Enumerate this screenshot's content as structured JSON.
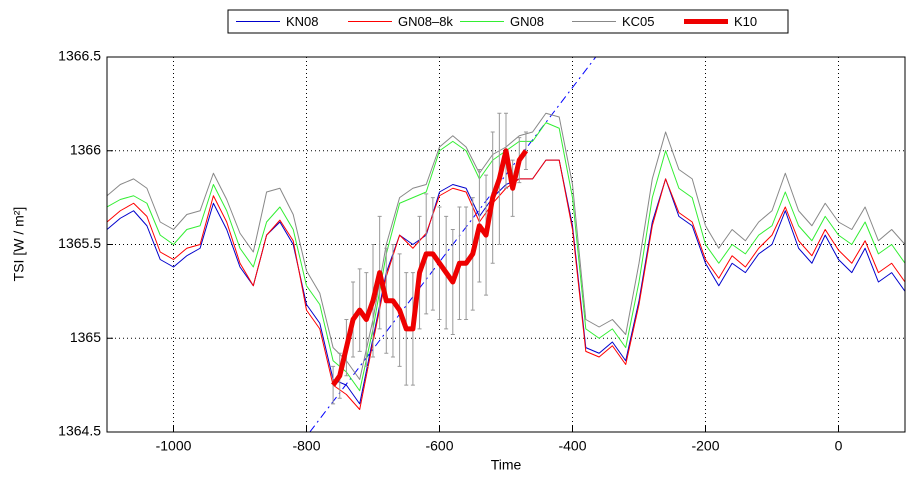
{
  "chart_data": {
    "type": "line",
    "xlabel": "Time",
    "ylabel": "TSI [W / m²]",
    "xlim": [
      -1100,
      100
    ],
    "ylim": [
      1364.5,
      1366.5
    ],
    "xticks": [
      -1000,
      -800,
      -600,
      -400,
      -200,
      0
    ],
    "yticks": [
      1364.5,
      1365,
      1365.5,
      1366,
      1366.5
    ],
    "grid": true,
    "legend": "top",
    "x": [
      -1100,
      -1080,
      -1060,
      -1040,
      -1020,
      -1000,
      -980,
      -960,
      -940,
      -920,
      -900,
      -880,
      -860,
      -840,
      -820,
      -800,
      -780,
      -760,
      -740,
      -720,
      -700,
      -680,
      -660,
      -640,
      -620,
      -600,
      -580,
      -560,
      -540,
      -520,
      -500,
      -480,
      -460,
      -440,
      -420,
      -400,
      -380,
      -360,
      -340,
      -320,
      -300,
      -280,
      -260,
      -240,
      -220,
      -200,
      -180,
      -160,
      -140,
      -120,
      -100,
      -80,
      -60,
      -40,
      -20,
      0,
      20,
      40,
      60,
      80,
      100
    ],
    "series": [
      {
        "name": "KN08",
        "color": "#0000cc",
        "width": 1,
        "values": [
          1365.58,
          1365.64,
          1365.68,
          1365.6,
          1365.42,
          1365.38,
          1365.44,
          1365.48,
          1365.72,
          1365.58,
          1365.38,
          1365.28,
          1365.55,
          1365.62,
          1365.5,
          1365.18,
          1365.08,
          1364.78,
          1364.75,
          1364.65,
          1365.0,
          1365.35,
          1365.55,
          1365.5,
          1365.55,
          1365.78,
          1365.82,
          1365.8,
          1365.65,
          1365.75,
          1365.82,
          1365.85,
          1365.85,
          1365.95,
          1365.95,
          1365.6,
          1364.95,
          1364.92,
          1364.98,
          1364.88,
          1365.2,
          1365.62,
          1365.85,
          1365.65,
          1365.6,
          1365.4,
          1365.28,
          1365.4,
          1365.35,
          1365.45,
          1365.5,
          1365.68,
          1365.48,
          1365.4,
          1365.55,
          1365.42,
          1365.35,
          1365.48,
          1365.3,
          1365.35,
          1365.25
        ]
      },
      {
        "name": "GN08–8k",
        "color": "#ff0000",
        "width": 1,
        "values": [
          1365.62,
          1365.68,
          1365.72,
          1365.65,
          1365.46,
          1365.42,
          1365.48,
          1365.5,
          1365.76,
          1365.62,
          1365.4,
          1365.28,
          1365.55,
          1365.63,
          1365.52,
          1365.15,
          1365.05,
          1364.75,
          1364.7,
          1364.62,
          1364.98,
          1365.33,
          1365.55,
          1365.48,
          1365.56,
          1365.76,
          1365.8,
          1365.78,
          1365.62,
          1365.72,
          1365.8,
          1365.85,
          1365.85,
          1365.95,
          1365.95,
          1365.58,
          1364.93,
          1364.9,
          1364.96,
          1364.86,
          1365.18,
          1365.6,
          1365.85,
          1365.67,
          1365.62,
          1365.42,
          1365.32,
          1365.44,
          1365.38,
          1365.48,
          1365.55,
          1365.7,
          1365.52,
          1365.44,
          1365.58,
          1365.47,
          1365.4,
          1365.52,
          1365.35,
          1365.4,
          1365.3
        ]
      },
      {
        "name": "GN08",
        "color": "#33ee33",
        "width": 1,
        "values": [
          1365.7,
          1365.74,
          1365.76,
          1365.72,
          1365.55,
          1365.5,
          1365.58,
          1365.6,
          1365.82,
          1365.68,
          1365.48,
          1365.38,
          1365.62,
          1365.7,
          1365.58,
          1365.28,
          1365.18,
          1364.88,
          1364.82,
          1364.72,
          1365.05,
          1365.45,
          1365.72,
          1365.75,
          1365.78,
          1366.0,
          1366.05,
          1366.0,
          1365.85,
          1365.95,
          1366.0,
          1366.05,
          1366.05,
          1366.15,
          1366.12,
          1365.75,
          1365.05,
          1365.0,
          1365.05,
          1364.95,
          1365.3,
          1365.75,
          1366.0,
          1365.8,
          1365.75,
          1365.5,
          1365.4,
          1365.5,
          1365.45,
          1365.55,
          1365.6,
          1365.78,
          1365.6,
          1365.52,
          1365.65,
          1365.55,
          1365.5,
          1365.62,
          1365.45,
          1365.5,
          1365.4
        ]
      },
      {
        "name": "KC05",
        "color": "#888888",
        "width": 1,
        "values": [
          1365.76,
          1365.82,
          1365.85,
          1365.8,
          1365.62,
          1365.58,
          1365.66,
          1365.68,
          1365.88,
          1365.74,
          1365.56,
          1365.46,
          1365.78,
          1365.8,
          1365.66,
          1365.36,
          1365.24,
          1364.95,
          1364.88,
          1364.78,
          1365.1,
          1365.5,
          1365.75,
          1365.8,
          1365.82,
          1366.02,
          1366.08,
          1366.02,
          1365.88,
          1365.98,
          1366.02,
          1366.08,
          1366.1,
          1366.2,
          1366.18,
          1365.82,
          1365.1,
          1365.06,
          1365.1,
          1365.02,
          1365.4,
          1365.85,
          1366.1,
          1365.9,
          1365.85,
          1365.6,
          1365.48,
          1365.58,
          1365.52,
          1365.62,
          1365.68,
          1365.88,
          1365.68,
          1365.6,
          1365.72,
          1365.62,
          1365.58,
          1365.7,
          1365.52,
          1365.58,
          1365.5
        ]
      },
      {
        "name": "K10",
        "color": "#ee0000",
        "width": 5,
        "error_color": "#999999",
        "x": [
          -760,
          -750,
          -740,
          -730,
          -720,
          -710,
          -700,
          -690,
          -680,
          -670,
          -660,
          -650,
          -640,
          -630,
          -620,
          -610,
          -600,
          -590,
          -580,
          -570,
          -560,
          -550,
          -540,
          -530,
          -520,
          -510,
          -500,
          -490,
          -480,
          -470
        ],
        "values": [
          1364.75,
          1364.8,
          1364.95,
          1365.1,
          1365.15,
          1365.1,
          1365.2,
          1365.35,
          1365.2,
          1365.2,
          1365.15,
          1365.05,
          1365.05,
          1365.35,
          1365.45,
          1365.45,
          1365.4,
          1365.35,
          1365.3,
          1365.4,
          1365.4,
          1365.45,
          1365.6,
          1365.55,
          1365.75,
          1365.85,
          1366.0,
          1365.8,
          1365.95,
          1366.0
        ],
        "errors": [
          0.1,
          0.12,
          0.15,
          0.2,
          0.22,
          0.25,
          0.3,
          0.3,
          0.28,
          0.3,
          0.3,
          0.3,
          0.3,
          0.3,
          0.32,
          0.3,
          0.3,
          0.3,
          0.28,
          0.3,
          0.3,
          0.3,
          0.3,
          0.32,
          0.35,
          0.35,
          0.2,
          0.15,
          0.12,
          0.1
        ]
      }
    ],
    "trend_line": {
      "color": "#0000ff",
      "x": [
        -795,
        -365
      ],
      "values": [
        1364.5,
        1366.5
      ]
    }
  }
}
